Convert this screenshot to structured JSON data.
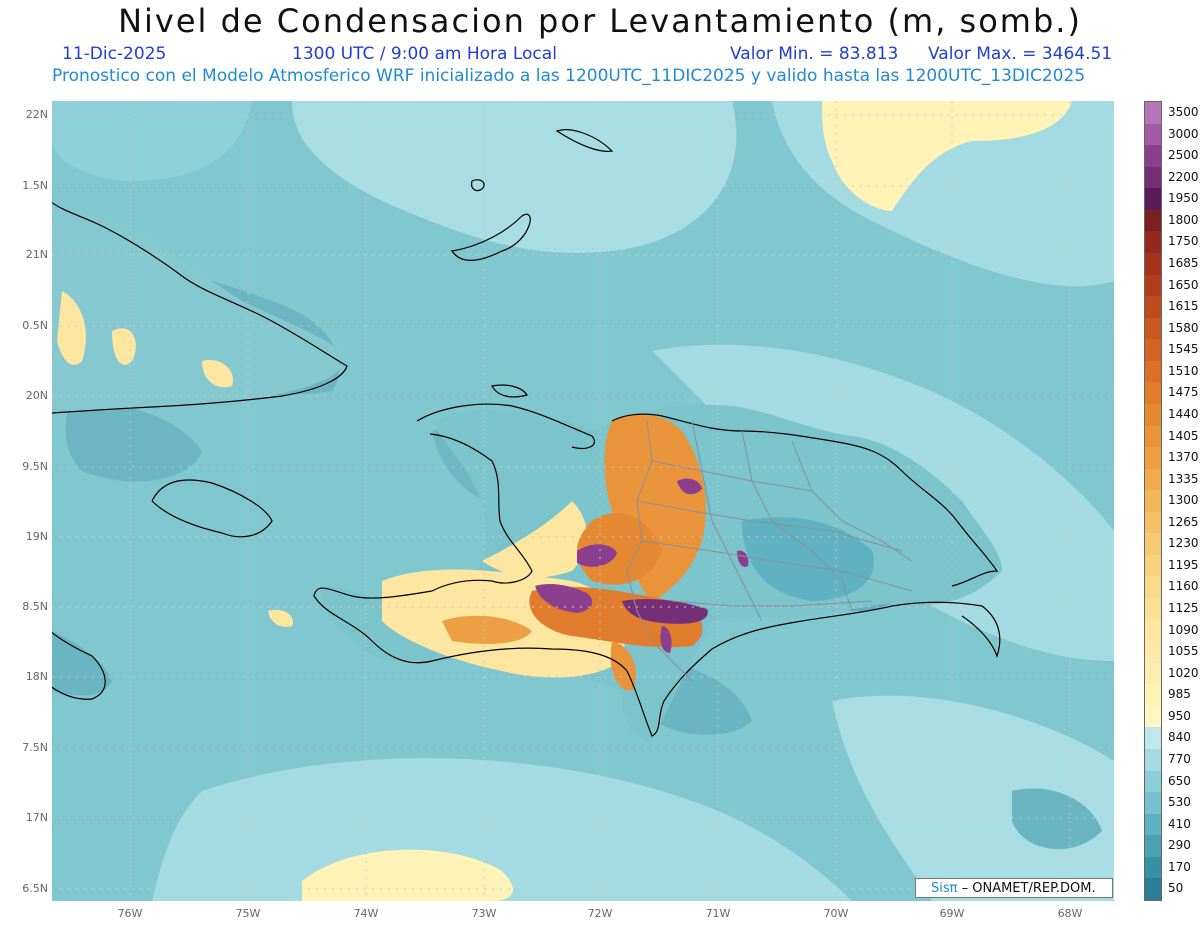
{
  "header": {
    "title": "Nivel de Condensacion por Levantamiento (m, somb.)",
    "date": "11-Dic-2025",
    "time": "1300 UTC / 9:00 am Hora Local",
    "valmin": "Valor Min. = 83.813",
    "valmax": "Valor Max. = 3464.51",
    "model": "Pronostico con el Modelo Atmosferico WRF inicializado a las 1200UTC_11DIC2025 y valido hasta las  1200UTC_13DIC2025"
  },
  "axes": {
    "lat_labels": [
      "22N",
      "1.5N",
      "21N",
      "0.5N",
      "20N",
      "9.5N",
      "19N",
      "8.5N",
      "18N",
      "7.5N",
      "17N",
      "6.5N"
    ],
    "lon_labels": [
      "76W",
      "75W",
      "74W",
      "73W",
      "72W",
      "71W",
      "70W",
      "69W",
      "68W"
    ]
  },
  "legend": {
    "labels": [
      "3500",
      "3000",
      "2500",
      "2200",
      "1950",
      "1800",
      "1750",
      "1685",
      "1650",
      "1615",
      "1580",
      "1545",
      "1510",
      "1475",
      "1440",
      "1405",
      "1370",
      "1335",
      "1300",
      "1265",
      "1230",
      "1195",
      "1160",
      "1125",
      "1090",
      "1055",
      "1020",
      "985",
      "950",
      "840",
      "770",
      "650",
      "530",
      "410",
      "290",
      "170",
      "50"
    ],
    "colors": [
      "#b874b8",
      "#a45aa6",
      "#8c3f8f",
      "#773078",
      "#5c1b58",
      "#7b1f1f",
      "#93281c",
      "#a5321a",
      "#b43d1c",
      "#c04a1e",
      "#cb5820",
      "#d36424",
      "#da7028",
      "#e07c2c",
      "#e58832",
      "#e99439",
      "#eda043",
      "#f0ab4e",
      "#f3b65a",
      "#f5c066",
      "#f7c972",
      "#f9d27e",
      "#fbd98a",
      "#fce096",
      "#fde6a0",
      "#fdeaa8",
      "#feefb0",
      "#fff3b8",
      "#fff6c0",
      "#bfe8ec",
      "#a4dbe2",
      "#8dcfd8",
      "#76c1cd",
      "#5fb2c1",
      "#49a1b3",
      "#3790a5",
      "#2a7f96"
    ]
  },
  "credit": {
    "sis": "Sisπ",
    "text": " – ONAMET/REP.DOM."
  }
}
